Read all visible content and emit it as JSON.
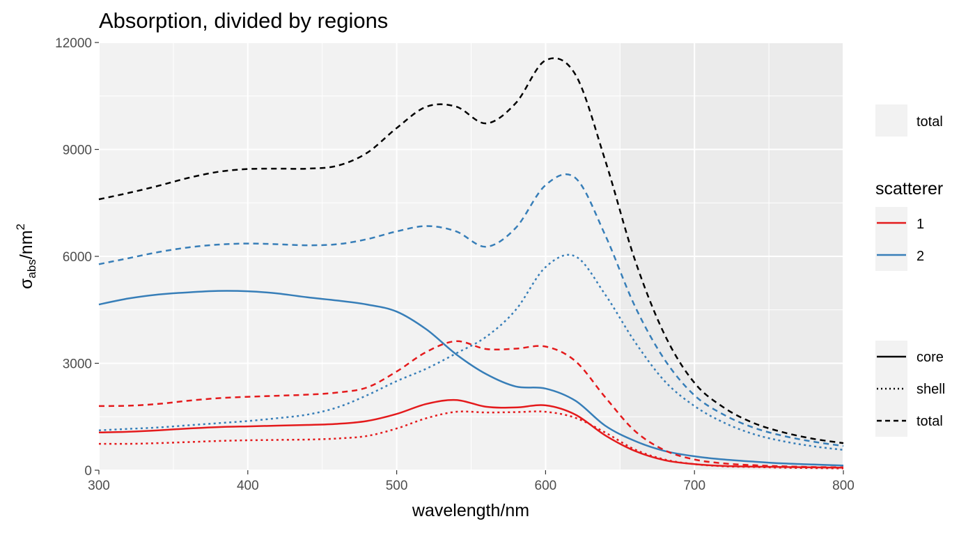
{
  "chart_data": {
    "type": "line",
    "title": "Absorption, divided by regions",
    "xlabel_main": "wavelength",
    "xlabel_unit": "nm",
    "ylabel_symbol": "σ",
    "ylabel_subscript": "abs",
    "ylabel_unit": "nm",
    "ylabel_exponent": "2",
    "xlim": [
      300,
      800
    ],
    "ylim": [
      0,
      12000
    ],
    "x_ticks": [
      300,
      400,
      500,
      600,
      700,
      800
    ],
    "y_ticks": [
      0,
      3000,
      6000,
      9000,
      12000
    ],
    "grid": true,
    "background": {
      "panel": "#ebebeb",
      "shaded_region_color": "#f2f2f2",
      "shaded_region_x": [
        300,
        650
      ],
      "note": ""
    },
    "colors": {
      "1": "#e41a1c",
      "2": "#377eb8",
      "total": "#000000"
    },
    "legend": {
      "fill_key": {
        "label": "total"
      },
      "scatterer": {
        "title": "scatterer",
        "items": [
          "1",
          "2"
        ]
      },
      "linetype": {
        "items": [
          {
            "label": "core",
            "dash": "solid"
          },
          {
            "label": "shell",
            "dash": "dotted"
          },
          {
            "label": "total",
            "dash": "dashed"
          }
        ]
      }
    },
    "x": [
      300,
      320,
      340,
      360,
      380,
      400,
      420,
      440,
      460,
      480,
      500,
      520,
      540,
      560,
      580,
      600,
      620,
      640,
      660,
      680,
      700,
      720,
      740,
      760,
      780,
      800
    ],
    "series": [
      {
        "scatterer": "total",
        "region": "total",
        "dash": "dashed",
        "values": [
          7600,
          7780,
          7980,
          8200,
          8370,
          8450,
          8460,
          8460,
          8540,
          8900,
          9600,
          10200,
          10200,
          9730,
          10300,
          11500,
          11100,
          8700,
          5900,
          3800,
          2450,
          1750,
          1320,
          1060,
          880,
          760
        ]
      },
      {
        "scatterer": "2",
        "region": "total",
        "dash": "dashed",
        "values": [
          5780,
          5950,
          6120,
          6250,
          6330,
          6360,
          6340,
          6310,
          6340,
          6480,
          6700,
          6850,
          6700,
          6270,
          6800,
          8000,
          8200,
          6600,
          4600,
          3100,
          2100,
          1550,
          1190,
          960,
          800,
          680
        ]
      },
      {
        "scatterer": "2",
        "region": "shell",
        "dash": "dotted",
        "values": [
          1120,
          1160,
          1200,
          1260,
          1320,
          1380,
          1460,
          1560,
          1760,
          2100,
          2500,
          2850,
          3280,
          3740,
          4500,
          5700,
          6000,
          4930,
          3600,
          2500,
          1800,
          1330,
          1010,
          810,
          670,
          570
        ]
      },
      {
        "scatterer": "2",
        "region": "core",
        "dash": "solid",
        "values": [
          4650,
          4820,
          4930,
          4990,
          5030,
          5020,
          4960,
          4850,
          4760,
          4650,
          4450,
          3950,
          3250,
          2700,
          2350,
          2290,
          1950,
          1250,
          820,
          540,
          390,
          300,
          240,
          190,
          160,
          130
        ]
      },
      {
        "scatterer": "1",
        "region": "total",
        "dash": "dashed",
        "values": [
          1800,
          1810,
          1860,
          1950,
          2020,
          2060,
          2090,
          2120,
          2180,
          2320,
          2770,
          3320,
          3620,
          3400,
          3410,
          3470,
          3060,
          2050,
          1100,
          560,
          300,
          190,
          140,
          110,
          90,
          80
        ]
      },
      {
        "scatterer": "1",
        "region": "core",
        "dash": "solid",
        "values": [
          1060,
          1080,
          1120,
          1170,
          1210,
          1230,
          1250,
          1270,
          1300,
          1380,
          1580,
          1860,
          1970,
          1780,
          1760,
          1820,
          1560,
          980,
          540,
          280,
          170,
          120,
          100,
          90,
          80,
          70
        ]
      },
      {
        "scatterer": "1",
        "region": "shell",
        "dash": "dotted",
        "values": [
          740,
          740,
          760,
          790,
          820,
          840,
          850,
          860,
          890,
          960,
          1170,
          1460,
          1640,
          1620,
          1630,
          1640,
          1470,
          1060,
          580,
          300,
          170,
          110,
          90,
          70,
          60,
          50
        ]
      }
    ]
  }
}
